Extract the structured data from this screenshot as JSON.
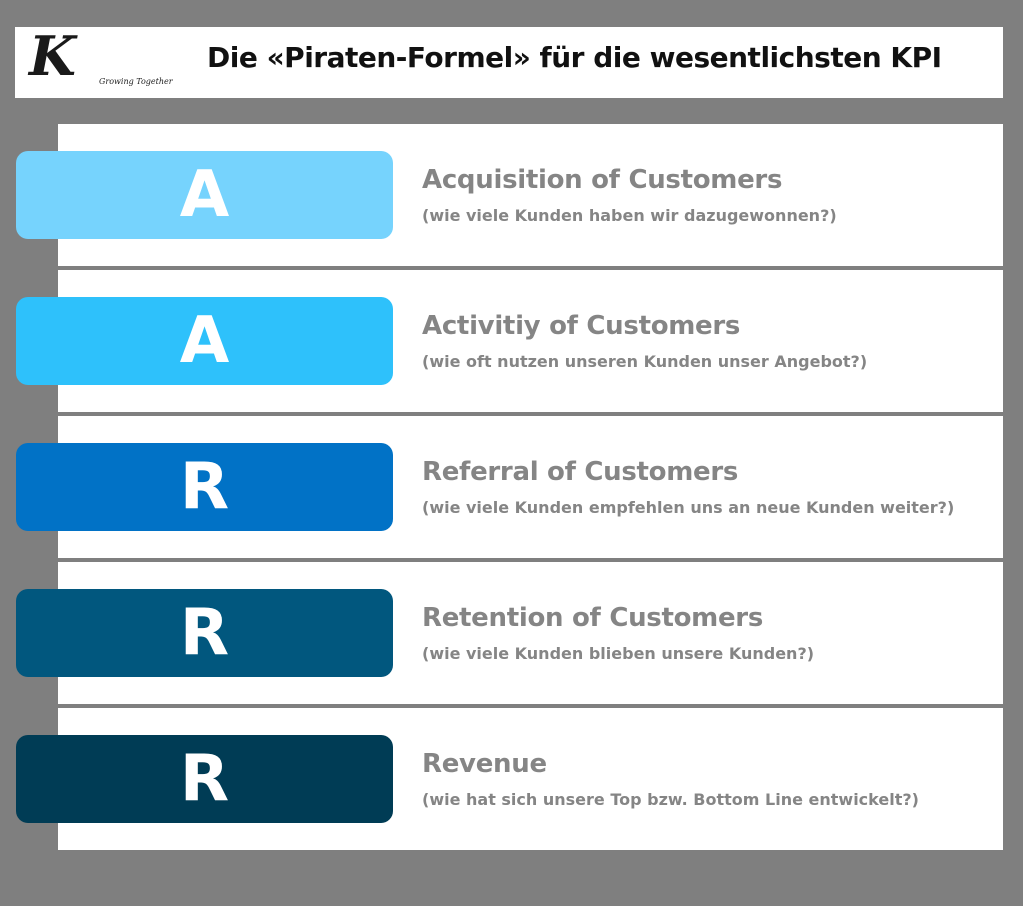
{
  "header": {
    "logo_letter": "K",
    "logo_tagline": "Growing Together",
    "title": "Die «Piraten-Formel» für die wesentlichsten KPI"
  },
  "rows": [
    {
      "letter": "A",
      "title": "Acquisition of Customers",
      "subtitle": "(wie viele Kunden haben wir dazugewonnen?)",
      "color": "#76d3fd"
    },
    {
      "letter": "A",
      "title": "Activitiy of Customers",
      "subtitle": "(wie oft nutzen unseren Kunden unser Angebot?)",
      "color": "#2ec1fb"
    },
    {
      "letter": "R",
      "title": "Referral of Customers",
      "subtitle": "(wie viele Kunden empfehlen uns an neue Kunden weiter?)",
      "color": "#0172c6"
    },
    {
      "letter": "R",
      "title": "Retention of Customers",
      "subtitle": "(wie viele Kunden blieben unsere Kunden?)",
      "color": "#01577e"
    },
    {
      "letter": "R",
      "title": "Revenue",
      "subtitle": "(wie hat sich unsere Top bzw. Bottom Line entwickelt?)",
      "color": "#003c55"
    }
  ]
}
